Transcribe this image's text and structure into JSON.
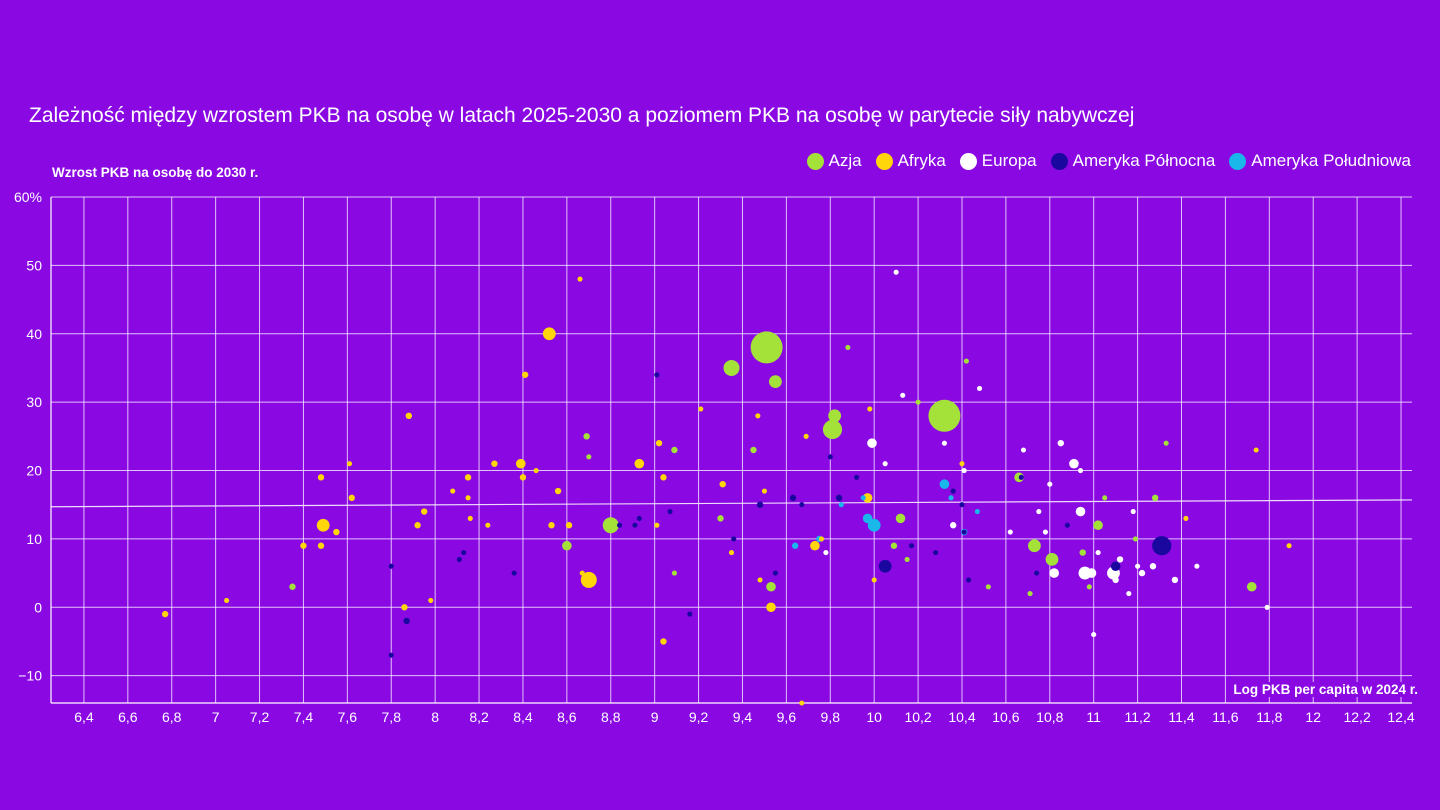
{
  "chart_data": {
    "type": "scatter",
    "title": "Zależność między wzrostem PKB na osobę w latach 2025-2030 a poziomem PKB na osobę w parytecie siły nabywczej",
    "ylabel": "Wzrost PKB na osobę do 2030 r.",
    "xlabel": "Log PKB per capita w 2024 r.",
    "xlim": [
      6.25,
      12.45
    ],
    "ylim": [
      -14,
      60
    ],
    "x_ticks": [
      6.4,
      6.6,
      6.8,
      7,
      7.2,
      7.4,
      7.6,
      7.8,
      8,
      8.2,
      8.4,
      8.6,
      8.8,
      9,
      9.2,
      9.4,
      9.6,
      9.8,
      10,
      10.2,
      10.4,
      10.6,
      10.8,
      11,
      11.2,
      11.4,
      11.6,
      11.8,
      12,
      12.2,
      12.4
    ],
    "x_tick_labels": [
      "6,4",
      "6,6",
      "6,8",
      "7",
      "7,2",
      "7,4",
      "7,6",
      "7,8",
      "8",
      "8,2",
      "8,4",
      "8,6",
      "8,8",
      "9",
      "9,2",
      "9,4",
      "9,6",
      "9,8",
      "10",
      "10,2",
      "10,4",
      "10,6",
      "10,8",
      "11",
      "11,2",
      "11,4",
      "11,6",
      "11,8",
      "12",
      "12,2",
      "12,4"
    ],
    "y_ticks": [
      -10,
      0,
      10,
      20,
      30,
      40,
      50,
      60
    ],
    "y_tick_labels": [
      "−10",
      "0",
      "10",
      "20",
      "30",
      "40",
      "50",
      "60%"
    ],
    "grid": true,
    "legend_position": "top-right",
    "trendline": {
      "x": [
        6.25,
        12.45
      ],
      "y": [
        14.7,
        15.7
      ]
    },
    "series": [
      {
        "name": "Azja",
        "color": "#a4e23a",
        "points": [
          [
            9.51,
            38,
            5
          ],
          [
            10.32,
            28,
            5
          ],
          [
            9.35,
            35,
            2.5
          ],
          [
            9.55,
            33,
            2
          ],
          [
            9.82,
            28,
            2
          ],
          [
            9.81,
            26,
            3
          ],
          [
            9.45,
            23,
            1
          ],
          [
            8.8,
            12,
            2.5
          ],
          [
            8.6,
            9,
            1.5
          ],
          [
            8.69,
            25,
            1
          ],
          [
            8.7,
            22,
            0.8
          ],
          [
            9.09,
            23,
            1
          ],
          [
            9.3,
            13,
            1
          ],
          [
            10.12,
            13,
            1.5
          ],
          [
            10.09,
            9,
            1
          ],
          [
            10.15,
            7,
            0.8
          ],
          [
            10.2,
            30,
            0.8
          ],
          [
            9.88,
            38,
            0.8
          ],
          [
            10.42,
            36,
            0.8
          ],
          [
            10.66,
            19,
            1.5
          ],
          [
            10.73,
            9,
            2
          ],
          [
            10.81,
            7,
            2
          ],
          [
            10.95,
            8,
            1
          ],
          [
            11.02,
            12,
            1.5
          ],
          [
            11.05,
            16,
            0.8
          ],
          [
            11.28,
            16,
            1
          ],
          [
            11.33,
            24,
            0.8
          ],
          [
            11.72,
            3,
            1.5
          ],
          [
            7.35,
            3,
            1
          ],
          [
            9.53,
            3,
            1.5
          ],
          [
            9.09,
            5,
            0.8
          ],
          [
            10.71,
            2,
            0.8
          ],
          [
            10.52,
            3,
            0.8
          ],
          [
            11.19,
            10,
            0.8
          ],
          [
            10.98,
            3,
            0.8
          ]
        ]
      },
      {
        "name": "Afryka",
        "color": "#ffd60a",
        "points": [
          [
            8.52,
            40,
            2
          ],
          [
            8.41,
            34,
            1
          ],
          [
            8.66,
            48,
            0.8
          ],
          [
            7.88,
            28,
            1
          ],
          [
            7.48,
            19,
            1
          ],
          [
            7.49,
            12,
            2
          ],
          [
            7.61,
            21,
            0.8
          ],
          [
            7.62,
            16,
            1
          ],
          [
            7.55,
            11,
            1
          ],
          [
            7.4,
            9,
            1
          ],
          [
            7.48,
            9,
            1
          ],
          [
            7.92,
            12,
            1
          ],
          [
            7.95,
            14,
            1
          ],
          [
            8.15,
            19,
            1
          ],
          [
            8.15,
            16,
            0.8
          ],
          [
            8.27,
            21,
            1
          ],
          [
            8.39,
            21,
            1.5
          ],
          [
            8.4,
            19,
            1
          ],
          [
            8.46,
            20,
            0.8
          ],
          [
            8.56,
            17,
            1
          ],
          [
            8.53,
            12,
            1
          ],
          [
            8.61,
            12,
            1
          ],
          [
            8.7,
            4,
            2.5
          ],
          [
            8.67,
            5,
            0.8
          ],
          [
            8.93,
            21,
            1.5
          ],
          [
            9.02,
            24,
            1
          ],
          [
            9.04,
            19,
            1
          ],
          [
            9.01,
            12,
            0.8
          ],
          [
            9.21,
            29,
            0.8
          ],
          [
            9.31,
            18,
            1
          ],
          [
            9.35,
            8,
            0.8
          ],
          [
            9.47,
            28,
            0.8
          ],
          [
            9.5,
            17,
            0.8
          ],
          [
            9.69,
            25,
            0.8
          ],
          [
            9.73,
            9,
            1.5
          ],
          [
            9.76,
            10,
            0.8
          ],
          [
            9.97,
            16,
            1.5
          ],
          [
            9.98,
            29,
            0.8
          ],
          [
            10.0,
            4,
            0.8
          ],
          [
            10.4,
            21,
            0.8
          ],
          [
            9.53,
            0,
            1.5
          ],
          [
            9.04,
            -5,
            1
          ],
          [
            7.86,
            0,
            1
          ],
          [
            7.98,
            1,
            0.8
          ],
          [
            7.05,
            1,
            0.8
          ],
          [
            6.77,
            -1,
            1
          ],
          [
            8.08,
            17,
            0.8
          ],
          [
            8.24,
            12,
            0.8
          ],
          [
            9.67,
            -14,
            0.8
          ],
          [
            9.48,
            4,
            0.8
          ],
          [
            11.42,
            13,
            0.8
          ],
          [
            11.74,
            23,
            0.8
          ],
          [
            11.89,
            9,
            0.8
          ],
          [
            8.16,
            13,
            0.8
          ]
        ]
      },
      {
        "name": "Europa",
        "color": "#ffffff",
        "points": [
          [
            9.99,
            24,
            1.5
          ],
          [
            10.05,
            21,
            0.8
          ],
          [
            10.1,
            49,
            0.8
          ],
          [
            10.13,
            31,
            0.8
          ],
          [
            10.32,
            24,
            0.8
          ],
          [
            10.48,
            32,
            0.8
          ],
          [
            10.41,
            20,
            0.8
          ],
          [
            10.36,
            12,
            1
          ],
          [
            10.68,
            23,
            0.8
          ],
          [
            10.85,
            24,
            1
          ],
          [
            10.91,
            21,
            1.5
          ],
          [
            10.94,
            20,
            0.8
          ],
          [
            10.75,
            14,
            0.8
          ],
          [
            10.78,
            11,
            0.8
          ],
          [
            10.8,
            18,
            0.8
          ],
          [
            10.94,
            14,
            1.5
          ],
          [
            10.82,
            5,
            1.5
          ],
          [
            10.96,
            5,
            2
          ],
          [
            10.99,
            5,
            1.5
          ],
          [
            11.09,
            5,
            2
          ],
          [
            11.1,
            4,
            1
          ],
          [
            11.12,
            7,
            1
          ],
          [
            11.18,
            14,
            0.8
          ],
          [
            11.2,
            6,
            0.8
          ],
          [
            11.22,
            5,
            1
          ],
          [
            11.27,
            6,
            1
          ],
          [
            11.37,
            4,
            1
          ],
          [
            11.47,
            6,
            0.8
          ],
          [
            11.16,
            2,
            0.8
          ],
          [
            11.0,
            -4,
            0.8
          ],
          [
            11.02,
            8,
            0.8
          ],
          [
            11.79,
            0,
            0.8
          ],
          [
            9.78,
            8,
            0.8
          ],
          [
            10.62,
            11,
            0.8
          ]
        ]
      },
      {
        "name": "Ameryka Północna",
        "color": "#1a07a0",
        "points": [
          [
            11.31,
            9,
            3
          ],
          [
            10.05,
            6,
            2
          ],
          [
            11.1,
            6,
            1.5
          ],
          [
            9.63,
            16,
            1
          ],
          [
            9.84,
            16,
            1
          ],
          [
            9.92,
            19,
            0.8
          ],
          [
            9.8,
            22,
            0.8
          ],
          [
            9.67,
            15,
            0.8
          ],
          [
            9.48,
            15,
            1
          ],
          [
            9.36,
            10,
            0.8
          ],
          [
            9.07,
            14,
            0.8
          ],
          [
            8.91,
            12,
            0.8
          ],
          [
            8.93,
            13,
            0.8
          ],
          [
            8.84,
            12,
            0.8
          ],
          [
            8.13,
            8,
            0.8
          ],
          [
            8.11,
            7,
            0.8
          ],
          [
            8.36,
            5,
            0.8
          ],
          [
            7.8,
            6,
            0.8
          ],
          [
            7.8,
            -7,
            0.8
          ],
          [
            7.87,
            -2,
            1
          ],
          [
            9.16,
            -1,
            0.8
          ],
          [
            10.17,
            9,
            0.8
          ],
          [
            10.28,
            8,
            0.8
          ],
          [
            10.43,
            4,
            0.8
          ],
          [
            10.41,
            11,
            0.8
          ],
          [
            10.4,
            15,
            0.8
          ],
          [
            10.67,
            19,
            0.8
          ],
          [
            10.88,
            12,
            0.8
          ],
          [
            10.74,
            5,
            0.8
          ],
          [
            9.55,
            5,
            0.8
          ],
          [
            10.36,
            17,
            0.8
          ],
          [
            9.01,
            34,
            0.8
          ]
        ]
      },
      {
        "name": "Ameryka Południowa",
        "color": "#19b7ea",
        "points": [
          [
            10.0,
            12,
            2
          ],
          [
            9.97,
            13,
            1.5
          ],
          [
            10.32,
            18,
            1.5
          ],
          [
            9.75,
            10,
            1
          ],
          [
            9.64,
            9,
            1
          ],
          [
            9.85,
            15,
            0.8
          ],
          [
            10.41,
            11,
            1
          ],
          [
            10.47,
            14,
            0.8
          ],
          [
            10.35,
            16,
            0.8
          ],
          [
            9.95,
            16,
            0.8
          ]
        ]
      }
    ]
  }
}
